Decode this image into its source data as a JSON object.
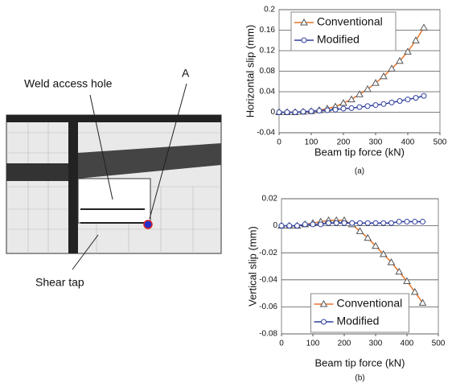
{
  "diagram": {
    "labels": [
      "Weld access hole",
      "A",
      "Shear tap"
    ]
  },
  "chart_data": [
    {
      "type": "line",
      "x_label": "Beam tip force (kN)",
      "y_label": "Horizontal slip (mm)",
      "caption": "(a)",
      "x": [
        0,
        25,
        50,
        75,
        100,
        125,
        150,
        175,
        200,
        225,
        250,
        275,
        300,
        325,
        350,
        375,
        400,
        425,
        450
      ],
      "series": [
        {
          "name": "Conventional",
          "color": "#e8742a",
          "marker": "triangle",
          "values": [
            0,
            0,
            0,
            0.001,
            0.002,
            0.004,
            0.007,
            0.011,
            0.018,
            0.025,
            0.035,
            0.045,
            0.057,
            0.07,
            0.085,
            0.1,
            0.118,
            0.14,
            0.165
          ]
        },
        {
          "name": "Modified",
          "color": "#2e3f9e",
          "marker": "circle",
          "values": [
            0,
            0,
            0,
            0.001,
            0.002,
            0.003,
            0.004,
            0.005,
            0.007,
            0.008,
            0.01,
            0.012,
            0.014,
            0.016,
            0.019,
            0.022,
            0.025,
            0.028,
            0.032
          ]
        }
      ],
      "xlim": [
        0,
        500
      ],
      "xticks": [
        0,
        100,
        200,
        300,
        400,
        500
      ],
      "ylim": [
        -0.04,
        0.2
      ],
      "yticks": [
        -0.04,
        0,
        0.04,
        0.08,
        0.12,
        0.16,
        0.2
      ],
      "grid": true,
      "legend": "upper left"
    },
    {
      "type": "line",
      "x_label": "Beam tip force (kN)",
      "y_label": "Vertical slip (mm)",
      "caption": "(b)",
      "x": [
        0,
        25,
        50,
        75,
        100,
        125,
        150,
        175,
        200,
        225,
        250,
        275,
        300,
        325,
        350,
        375,
        400,
        425,
        450
      ],
      "series": [
        {
          "name": "Conventional",
          "color": "#e8742a",
          "marker": "triangle",
          "values": [
            0,
            0,
            0,
            0.001,
            0.002,
            0.003,
            0.004,
            0.004,
            0.004,
            0.001,
            -0.004,
            -0.009,
            -0.015,
            -0.021,
            -0.027,
            -0.034,
            -0.041,
            -0.049,
            -0.057
          ]
        },
        {
          "name": "Modified",
          "color": "#2e3f9e",
          "marker": "circle",
          "values": [
            0,
            0,
            0,
            0.001,
            0.001,
            0.001,
            0.002,
            0.002,
            0.002,
            0.002,
            0.002,
            0.002,
            0.002,
            0.002,
            0.002,
            0.003,
            0.003,
            0.003,
            0.003
          ]
        }
      ],
      "xlim": [
        0,
        500
      ],
      "xticks": [
        0,
        100,
        200,
        300,
        400,
        500
      ],
      "ylim": [
        -0.08,
        0.02
      ],
      "yticks": [
        -0.08,
        -0.06,
        -0.04,
        -0.02,
        0,
        0.02
      ],
      "grid": true,
      "legend": "lower center"
    }
  ]
}
